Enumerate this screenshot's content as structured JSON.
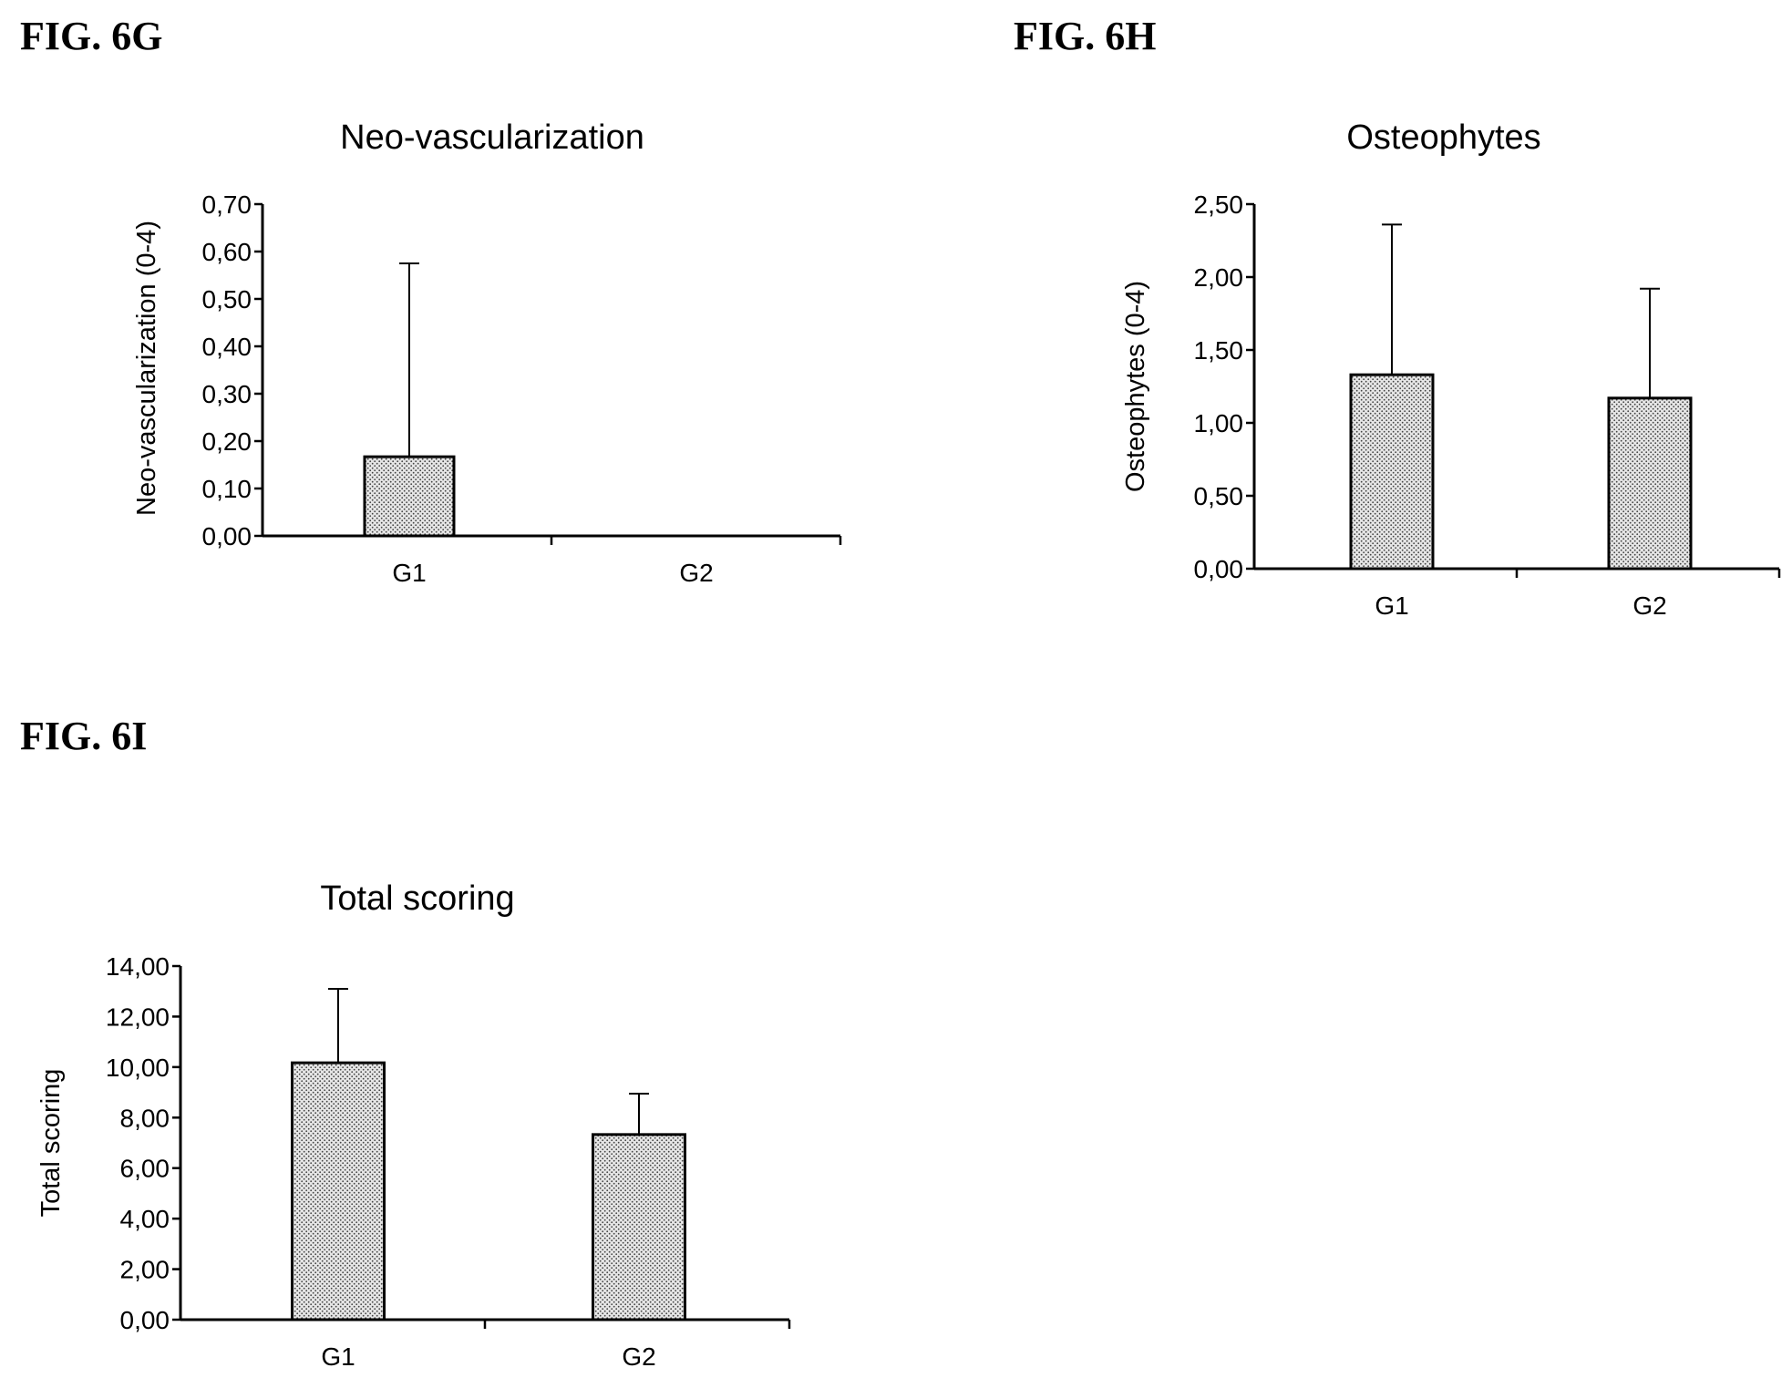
{
  "figures": [
    {
      "label": "FIG. 6G"
    },
    {
      "label": "FIG. 6H"
    },
    {
      "label": "FIG. 6I"
    }
  ],
  "chart_data": [
    {
      "type": "bar",
      "title": "Neo-vascularization",
      "xlabel": "",
      "ylabel": "Neo-vascularization (0-4)",
      "categories": [
        "G1",
        "G2"
      ],
      "values": [
        0.167,
        0.0
      ],
      "error_upper": [
        0.408,
        0.0
      ],
      "ylim": [
        0,
        0.7
      ],
      "yticks": [
        0,
        0.1,
        0.2,
        0.3,
        0.4,
        0.5,
        0.6,
        0.7
      ],
      "ytick_labels": [
        "0,00",
        "0,10",
        "0,20",
        "0,30",
        "0,40",
        "0,50",
        "0,60",
        "0,70"
      ],
      "bar_fill": "stippled grey",
      "grid": false
    },
    {
      "type": "bar",
      "title": "Osteophytes",
      "xlabel": "",
      "ylabel": "Osteophytes (0-4)",
      "categories": [
        "G1",
        "G2"
      ],
      "values": [
        1.33,
        1.17
      ],
      "error_upper": [
        1.03,
        0.75
      ],
      "ylim": [
        0,
        2.5
      ],
      "yticks": [
        0,
        0.5,
        1.0,
        1.5,
        2.0,
        2.5
      ],
      "ytick_labels": [
        "0,00",
        "0,50",
        "1,00",
        "1,50",
        "2,00",
        "2,50"
      ],
      "bar_fill": "stippled grey",
      "grid": false
    },
    {
      "type": "bar",
      "title": "Total scoring",
      "xlabel": "",
      "ylabel": "Total scoring",
      "categories": [
        "G1",
        "G2"
      ],
      "values": [
        10.17,
        7.33
      ],
      "error_upper": [
        2.93,
        1.62
      ],
      "ylim": [
        0,
        14
      ],
      "yticks": [
        0,
        2,
        4,
        6,
        8,
        10,
        12,
        14
      ],
      "ytick_labels": [
        "0,00",
        "2,00",
        "4,00",
        "6,00",
        "8,00",
        "10,00",
        "12,00",
        "14,00"
      ],
      "bar_fill": "stippled grey",
      "grid": false
    }
  ]
}
